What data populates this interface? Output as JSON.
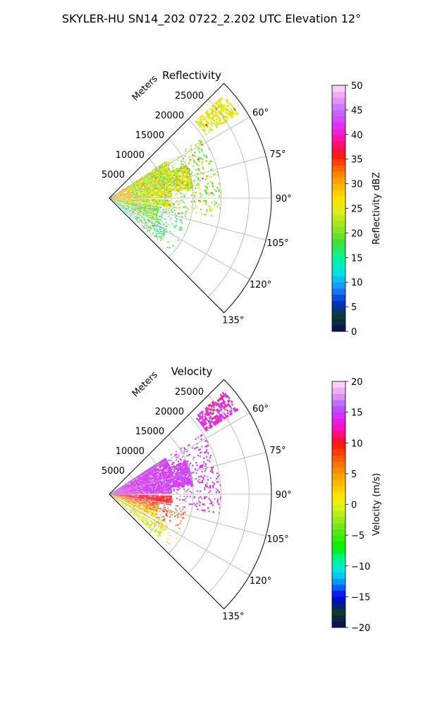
{
  "figure": {
    "title": "SKYLER-HU  SN14_202  0722_2.202 UTC Elevation 12°"
  },
  "chart_data": [
    {
      "type": "heatmap",
      "projection": "polar-sector",
      "title": "Reflectivity",
      "radial_axis_label": "Meters",
      "radial_ticks": [
        5000,
        10000,
        15000,
        20000,
        25000
      ],
      "radial_tick_labels": [
        "5000",
        "10000",
        "15000",
        "20000",
        "25000"
      ],
      "r_range": [
        0,
        29000
      ],
      "angle_ticks": [
        60,
        75,
        90,
        105,
        120,
        135
      ],
      "angle_tick_labels": [
        "60°",
        "75°",
        "90°",
        "105°",
        "120°",
        "135°"
      ],
      "angle_range": [
        45,
        135
      ],
      "grid": true,
      "colorbar": {
        "label": "Reflectivity dBZ",
        "range": [
          0,
          50
        ],
        "ticks": [
          0,
          5,
          10,
          15,
          20,
          25,
          30,
          35,
          40,
          45,
          50
        ],
        "tick_labels": [
          "0",
          "5",
          "10",
          "15",
          "20",
          "25",
          "30",
          "35",
          "40",
          "45",
          "50"
        ]
      },
      "field_summary": {
        "dominant_range": [
          15,
          30
        ],
        "typical": "green-yellow echoes 18–28 dBZ across 60°–110° out to ~14000 m; scattered 30–35 dBZ near radar; weaker cyan 12–16 dBZ beyond 100°; distant patch near 60° at ~25000 m"
      },
      "color_stops": [
        {
          "v": 0,
          "c": "#0a0a5a"
        },
        {
          "v": 3,
          "c": "#0b3b2e"
        },
        {
          "v": 6,
          "c": "#0033cc"
        },
        {
          "v": 9,
          "c": "#1f8fff"
        },
        {
          "v": 12,
          "c": "#00e5e5"
        },
        {
          "v": 15,
          "c": "#00f59a"
        },
        {
          "v": 18,
          "c": "#3ee03a"
        },
        {
          "v": 21,
          "c": "#8fe61a"
        },
        {
          "v": 24,
          "c": "#d6ef1a"
        },
        {
          "v": 27,
          "c": "#ffe000"
        },
        {
          "v": 30,
          "c": "#ffb000"
        },
        {
          "v": 33,
          "c": "#ff6a00"
        },
        {
          "v": 36,
          "c": "#ff1010"
        },
        {
          "v": 39,
          "c": "#ff10a0"
        },
        {
          "v": 42,
          "c": "#e030ff"
        },
        {
          "v": 45,
          "c": "#c070ff"
        },
        {
          "v": 48,
          "c": "#f0a8f0"
        },
        {
          "v": 50,
          "c": "#ffe0ff"
        }
      ]
    },
    {
      "type": "heatmap",
      "projection": "polar-sector",
      "title": "Velocity",
      "radial_axis_label": "Meters",
      "radial_ticks": [
        5000,
        10000,
        15000,
        20000,
        25000
      ],
      "radial_tick_labels": [
        "5000",
        "10000",
        "15000",
        "20000",
        "25000"
      ],
      "r_range": [
        0,
        29000
      ],
      "angle_ticks": [
        60,
        75,
        90,
        105,
        120,
        135
      ],
      "angle_tick_labels": [
        "60°",
        "75°",
        "90°",
        "105°",
        "120°",
        "135°"
      ],
      "angle_range": [
        45,
        135
      ],
      "grid": true,
      "colorbar": {
        "label": "Velocity (m/s)",
        "range": [
          -20,
          20
        ],
        "ticks": [
          -20,
          -15,
          -10,
          -5,
          0,
          5,
          10,
          15,
          20
        ],
        "tick_labels": [
          "−20",
          "−15",
          "−10",
          "−5",
          "0",
          "5",
          "10",
          "15",
          "20"
        ]
      },
      "field_summary": {
        "dominant_range": [
          -5,
          15
        ],
        "typical": "magenta 13–16 m/s for azimuth 50°–90°; red/orange 6–12 m/s for 90°–105°; yellow/green -3 to 3 m/s for 110°–130°"
      },
      "color_stops": [
        {
          "v": -20,
          "c": "#0a0a5a"
        },
        {
          "v": -17.5,
          "c": "#0b3b2e"
        },
        {
          "v": -15,
          "c": "#0000ee"
        },
        {
          "v": -13,
          "c": "#0080ff"
        },
        {
          "v": -11,
          "c": "#00e5ee"
        },
        {
          "v": -9,
          "c": "#00f59a"
        },
        {
          "v": -7,
          "c": "#00f000"
        },
        {
          "v": -4,
          "c": "#66e61a"
        },
        {
          "v": -1,
          "c": "#c8ef1a"
        },
        {
          "v": 1,
          "c": "#ffee00"
        },
        {
          "v": 4,
          "c": "#ffb000"
        },
        {
          "v": 7,
          "c": "#ff6a00"
        },
        {
          "v": 10,
          "c": "#ff1010"
        },
        {
          "v": 12,
          "c": "#ff10a0"
        },
        {
          "v": 14,
          "c": "#e020ff"
        },
        {
          "v": 16,
          "c": "#b060ff"
        },
        {
          "v": 18,
          "c": "#e8a0f0"
        },
        {
          "v": 20,
          "c": "#ffe0ff"
        }
      ]
    }
  ]
}
